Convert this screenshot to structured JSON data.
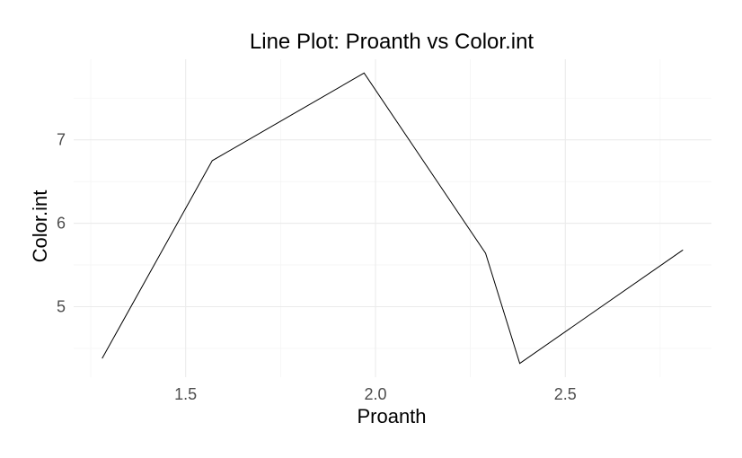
{
  "chart_data": {
    "type": "line",
    "title": "Line Plot: Proanth vs Color.int",
    "xlabel": "Proanth",
    "ylabel": "Color.int",
    "x": [
      1.28,
      1.57,
      1.97,
      2.29,
      2.38,
      2.81
    ],
    "y": [
      4.38,
      6.75,
      7.8,
      5.64,
      4.32,
      5.68
    ],
    "xlim": [
      1.205,
      2.885
    ],
    "ylim": [
      4.155,
      7.965
    ],
    "xticks": [
      1.5,
      2.0,
      2.5
    ],
    "xtick_labels": [
      "1.5",
      "2.0",
      "2.5"
    ],
    "yticks": [
      5,
      6,
      7
    ],
    "ytick_labels": [
      "5",
      "6",
      "7"
    ],
    "grid": true,
    "line_color": "#000000",
    "legend": "none"
  }
}
